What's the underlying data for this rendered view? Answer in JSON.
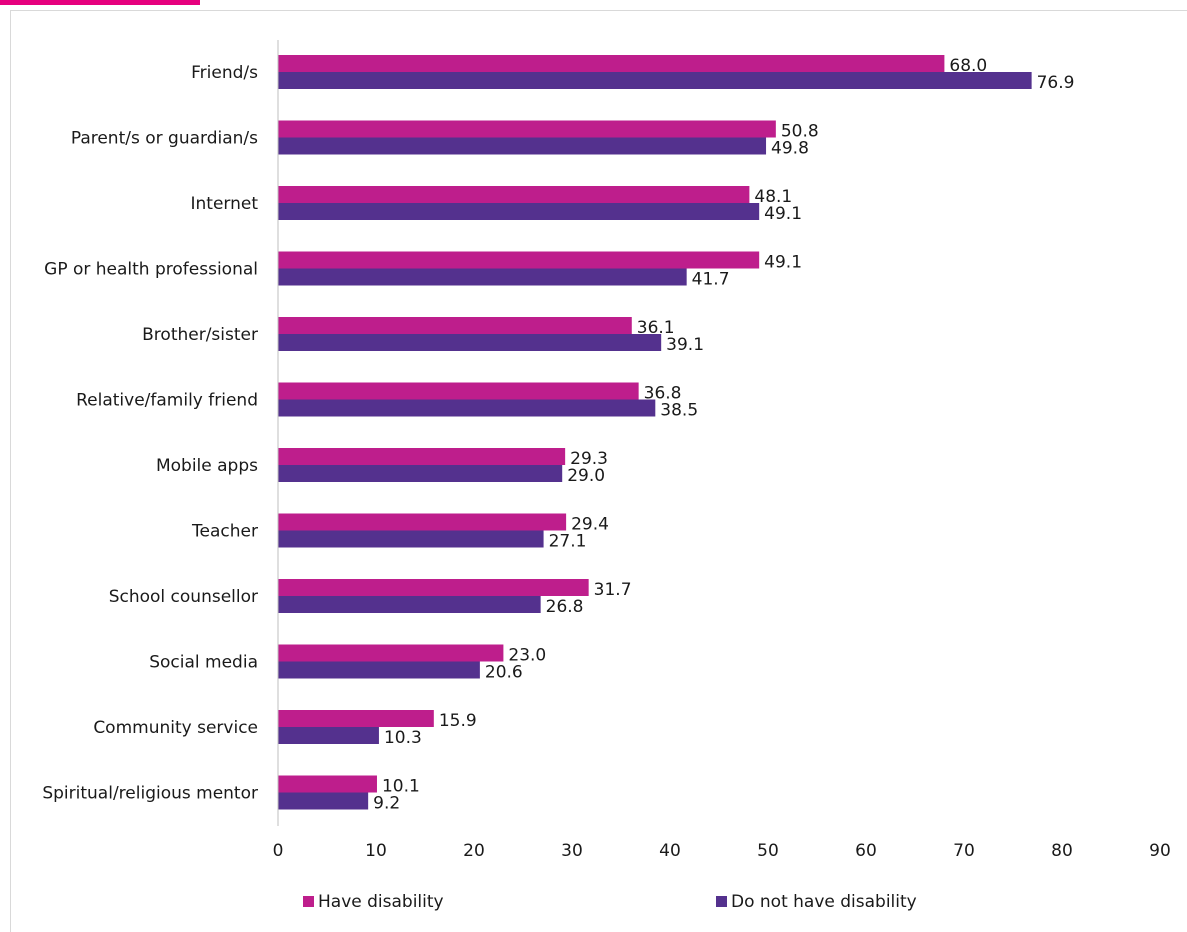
{
  "colors": {
    "have_disability": "#be1e8c",
    "no_disability": "#54318e",
    "axis": "#bfbfbf",
    "text": "#1a1a1a",
    "top_strip": "#e6007e"
  },
  "chart_data": {
    "type": "bar",
    "orientation": "horizontal",
    "title": "",
    "xlabel": "",
    "ylabel": "",
    "xlim": [
      0,
      90
    ],
    "xticks": [
      0,
      10,
      20,
      30,
      40,
      50,
      60,
      70,
      80,
      90
    ],
    "grid": false,
    "legend_position": "bottom",
    "categories": [
      "Friend/s",
      "Parent/s or guardian/s",
      "Internet",
      "GP or health professional",
      "Brother/sister",
      "Relative/family friend",
      "Mobile apps",
      "Teacher",
      "School counsellor",
      "Social media",
      "Community service",
      "Spiritual/religious mentor"
    ],
    "series": [
      {
        "name": "Have disability",
        "color": "#be1e8c",
        "values": [
          68.0,
          50.8,
          48.1,
          49.1,
          36.1,
          36.8,
          29.3,
          29.4,
          31.7,
          23.0,
          15.9,
          10.1
        ],
        "labels": [
          "68.0",
          "50.8",
          "48.1",
          "49.1",
          "36.1",
          "36.8",
          "29.3",
          "29.4",
          "31.7",
          "23.0",
          "15.9",
          "10.1"
        ]
      },
      {
        "name": "Do not have disability",
        "color": "#54318e",
        "values": [
          76.9,
          49.8,
          49.1,
          41.7,
          39.1,
          38.5,
          29.0,
          27.1,
          26.8,
          20.6,
          10.3,
          9.2
        ],
        "labels": [
          "76.9",
          "49.8",
          "49.1",
          "41.7",
          "39.1",
          "38.5",
          "29.0",
          "27.1",
          "26.8",
          "20.6",
          "10.3",
          "9.2"
        ]
      }
    ]
  }
}
